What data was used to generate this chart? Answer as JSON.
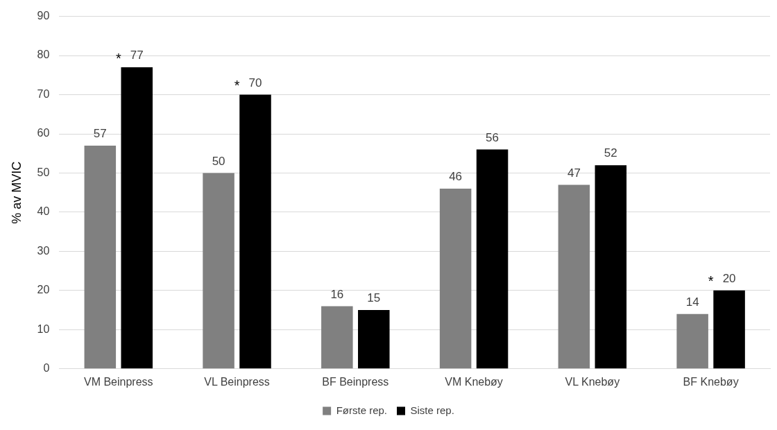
{
  "chart_data": {
    "type": "bar",
    "ylabel": "% av MVIC",
    "categories": [
      "VM Beinpress",
      "VL Beinpress",
      "BF Beinpress",
      "VM Knebøy",
      "VL Knebøy",
      "BF Knebøy"
    ],
    "series": [
      {
        "name": "Første rep.",
        "color": "#808080",
        "values": [
          57,
          50,
          16,
          46,
          47,
          14
        ]
      },
      {
        "name": "Siste rep.",
        "color": "#000000",
        "values": [
          77,
          70,
          15,
          56,
          52,
          20
        ]
      }
    ],
    "ylim": [
      0,
      90
    ],
    "yticks": [
      0,
      10,
      20,
      30,
      40,
      50,
      60,
      70,
      80,
      90
    ],
    "grid": "y",
    "legend": "bottom",
    "data_labels": true,
    "annotations": [
      {
        "text": "*",
        "x": "VM Beinpress",
        "y": 77
      },
      {
        "text": "*",
        "x": "VL Beinpress",
        "y": 70
      },
      {
        "text": "*",
        "x": "BF Knebøy",
        "y": 20
      }
    ]
  }
}
